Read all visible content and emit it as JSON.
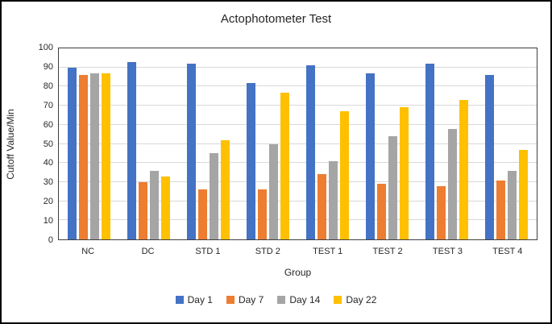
{
  "chart_data": {
    "type": "bar",
    "title": "Actophotometer Test",
    "xlabel": "Group",
    "ylabel": "Cutoff Value/Min",
    "ylim": [
      0,
      100
    ],
    "y_ticks": [
      0,
      10,
      20,
      30,
      40,
      50,
      60,
      70,
      80,
      90,
      100
    ],
    "grid": true,
    "legend_position": "bottom",
    "categories": [
      "NC",
      "DC",
      "STD 1",
      "STD 2",
      "TEST 1",
      "TEST 2",
      "TEST 3",
      "TEST 4"
    ],
    "series": [
      {
        "name": "Day 1",
        "color": "#4472C4",
        "values": [
          90,
          93,
          92,
          82,
          91,
          87,
          92,
          86
        ]
      },
      {
        "name": "Day 7",
        "color": "#ED7D31",
        "values": [
          86,
          30,
          26,
          26,
          34,
          29,
          28,
          31
        ]
      },
      {
        "name": "Day 14",
        "color": "#A5A5A5",
        "values": [
          87,
          36,
          45,
          50,
          41,
          54,
          58,
          36
        ]
      },
      {
        "name": "Day 22",
        "color": "#FFC000",
        "values": [
          87,
          33,
          52,
          77,
          67,
          69,
          73,
          47
        ]
      }
    ]
  },
  "style": {
    "series_blue": "#4472C4",
    "series_orange": "#ED7D31",
    "series_gray": "#A5A5A5",
    "series_yellow": "#FFC000",
    "gridline_color": "#d9d9d9",
    "plot_border_color": "#3f3f3f",
    "figure_border_color": "#000000",
    "text_color": "#262626",
    "background_color": "#ffffff"
  }
}
